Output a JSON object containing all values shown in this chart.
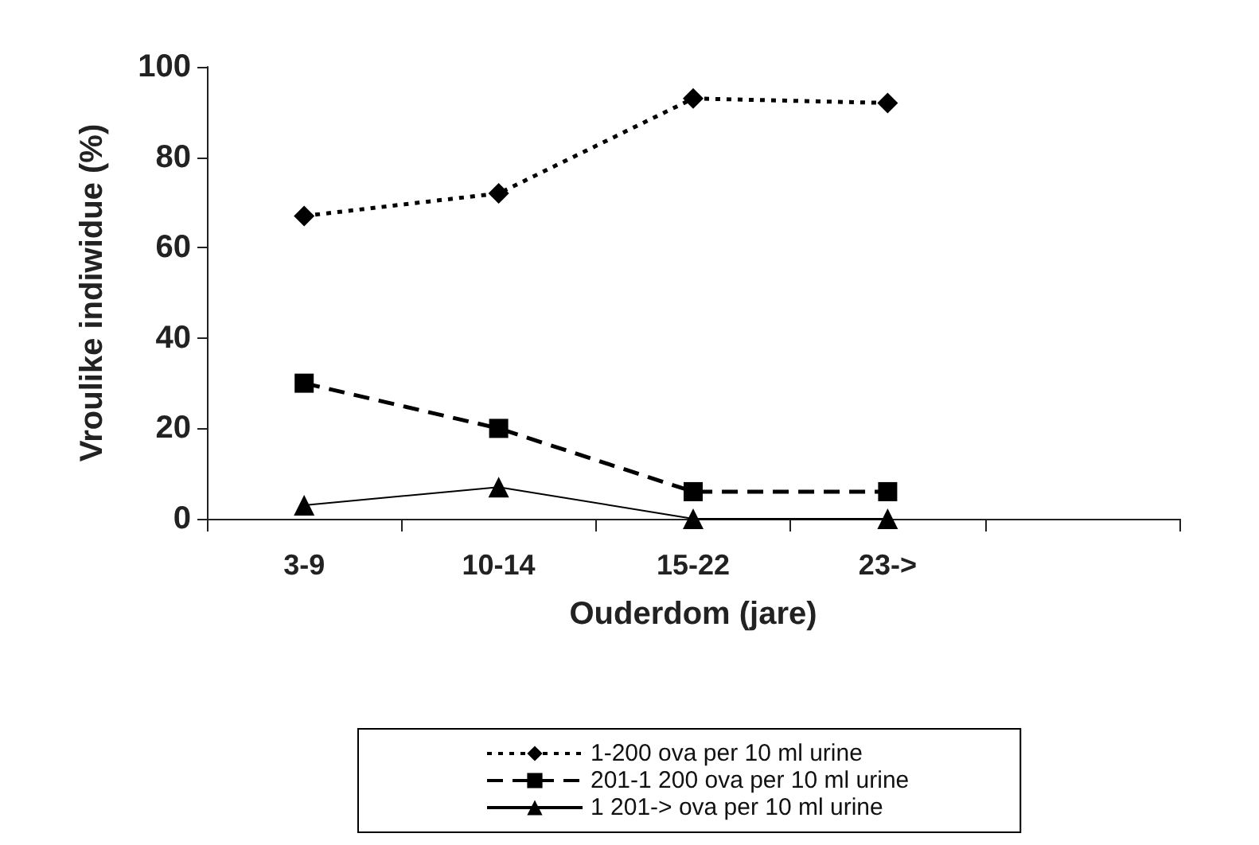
{
  "chart_data": {
    "type": "line",
    "xlabel": "Ouderdom (jare)",
    "ylabel": "Vroulike indiwidue (%)",
    "categories": [
      "3-9",
      "10-14",
      "15-22",
      "23->",
      null
    ],
    "series": [
      {
        "name": "1-200 ova per 10 ml urine",
        "color": "#000000",
        "marker": "diamond",
        "line_style": "dotted",
        "values": [
          67,
          72,
          93,
          92,
          null
        ]
      },
      {
        "name": "201-1 200 ova per 10 ml urine",
        "color": "#000000",
        "marker": "square",
        "line_style": "dashed",
        "values": [
          30,
          20,
          6,
          6,
          null
        ]
      },
      {
        "name": "1 201-> ova per 10 ml urine",
        "color": "#000000",
        "marker": "triangle",
        "line_style": "solid",
        "values": [
          3,
          7,
          0,
          0,
          null
        ]
      }
    ],
    "ylim": [
      0,
      100
    ],
    "yticks": [
      0,
      20,
      40,
      60,
      80,
      100
    ],
    "grid": false,
    "legend": "bottom"
  }
}
